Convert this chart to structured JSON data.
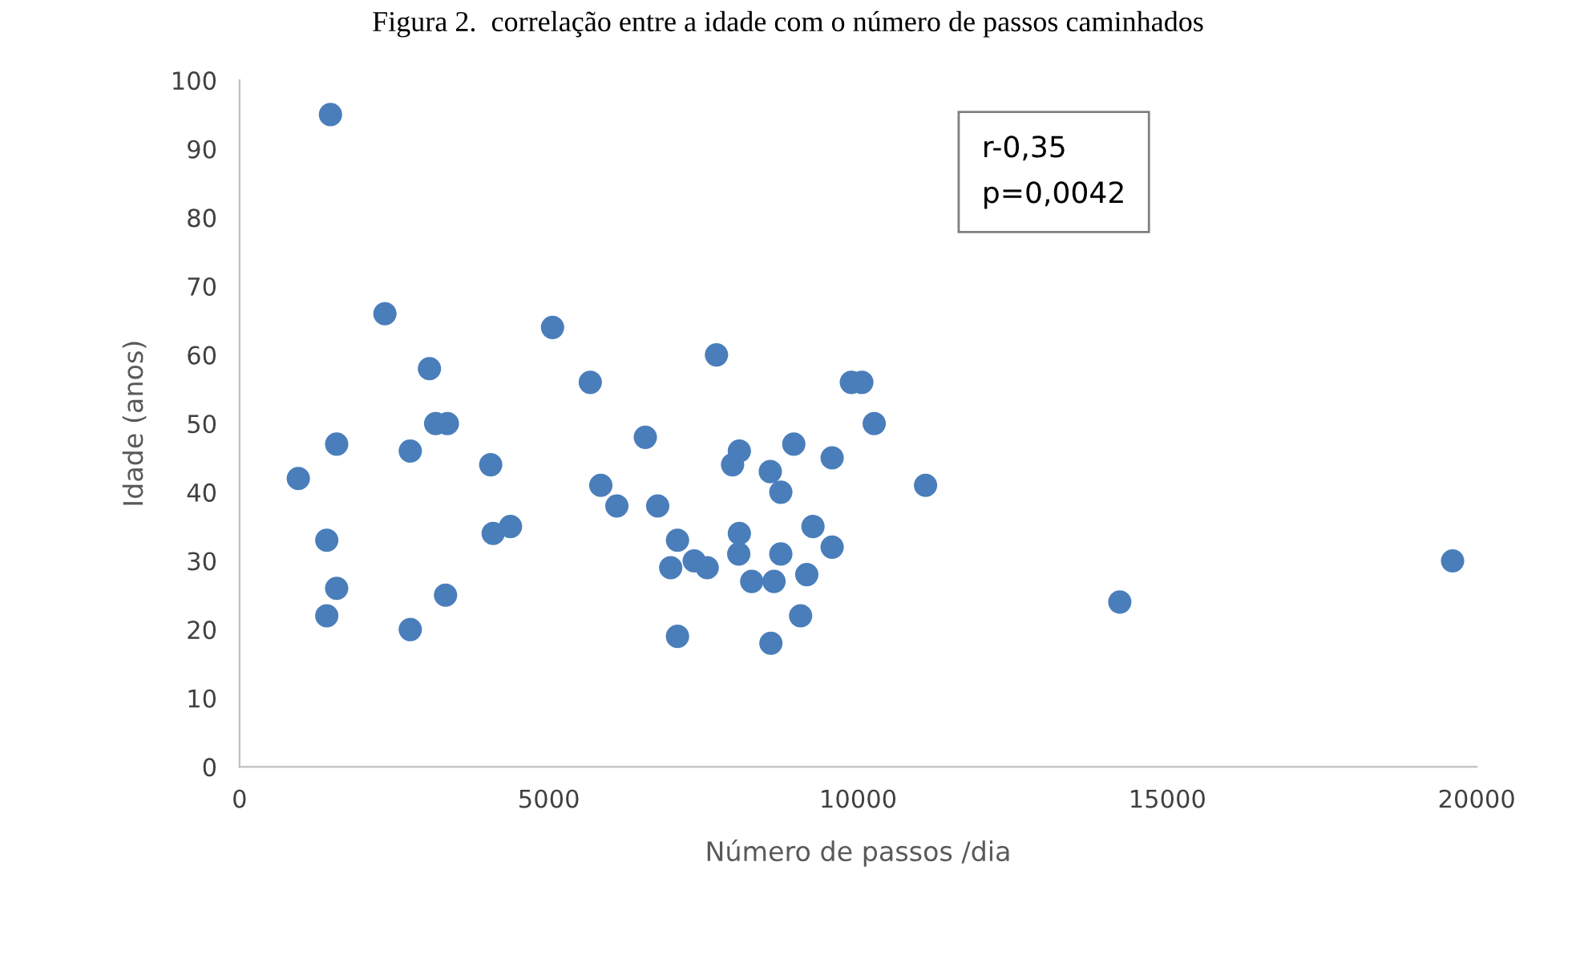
{
  "chart_data": {
    "type": "scatter",
    "title": "Figura 2.  correlação entre a idade com o número de passos caminhados",
    "xlabel": "Número de passos /dia",
    "ylabel": "Idade (anos)",
    "annotations": [
      "r-0,35\np=0,0042"
    ],
    "series": [
      {
        "color": "#4a7ebb",
        "x": [
          1470,
          2350,
          5060,
          3070,
          5670,
          7710,
          3170,
          3360,
          1570,
          2760,
          6560,
          950,
          4060,
          5840,
          6100,
          6760,
          1410,
          4100,
          4380,
          7080,
          6970,
          7350,
          7560,
          1570,
          3330,
          1410,
          2760,
          7080,
          9890,
          10060,
          10260,
          8080,
          7970,
          8960,
          9580,
          8580,
          8750,
          11090,
          8080,
          9270,
          8070,
          8750,
          9580,
          8280,
          8640,
          9170,
          9070,
          8590,
          14230,
          19610
        ],
        "values": [
          95,
          66,
          64,
          58,
          56,
          60,
          50,
          50,
          47,
          46,
          48,
          42,
          44,
          41,
          38,
          38,
          33,
          34,
          35,
          33,
          29,
          30,
          29,
          26,
          25,
          22,
          20,
          19,
          56,
          56,
          50,
          46,
          44,
          47,
          45,
          43,
          40,
          41,
          34,
          35,
          31,
          31,
          32,
          27,
          27,
          28,
          22,
          18,
          24,
          30
        ]
      }
    ],
    "xlim": [
      0,
      20000
    ],
    "xticks": [
      0,
      5000,
      10000,
      15000,
      20000
    ],
    "ylim": [
      0,
      100
    ],
    "yticks": [
      0,
      10,
      20,
      30,
      40,
      50,
      60,
      70,
      80,
      90,
      100
    ],
    "marker": "circle",
    "grid": false,
    "legend": false
  }
}
